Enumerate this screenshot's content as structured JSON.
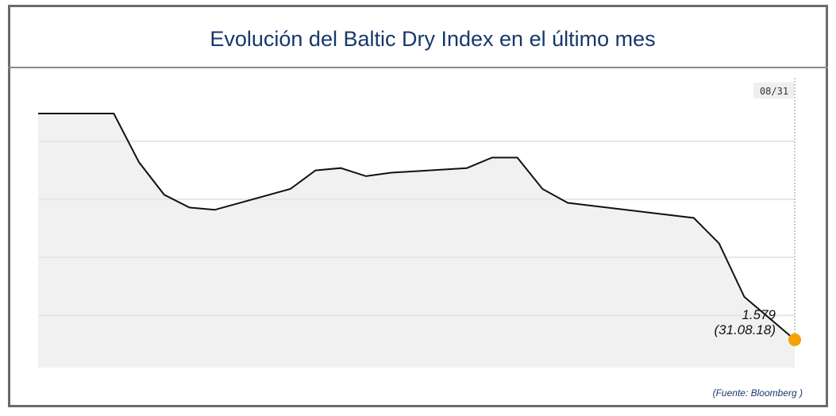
{
  "title": "Evolución del Baltic Dry Index en el último mes",
  "source": "(Fuente: Bloomberg )",
  "chart_data": {
    "type": "area",
    "title": "Evolución del Baltic Dry Index en el último mes",
    "xlabel": "",
    "ylabel": "",
    "grid": true,
    "x": [
      "2018-08-01",
      "2018-08-04",
      "2018-08-05",
      "2018-08-06",
      "2018-08-07",
      "2018-08-08",
      "2018-08-11",
      "2018-08-12",
      "2018-08-13",
      "2018-08-14",
      "2018-08-15",
      "2018-08-18",
      "2018-08-19",
      "2018-08-20",
      "2018-08-21",
      "2018-08-22",
      "2018-08-27",
      "2018-08-28",
      "2018-08-29",
      "2018-08-31"
    ],
    "values": [
      1774,
      1774,
      1732,
      1704,
      1693,
      1691,
      1709,
      1725,
      1727,
      1720,
      1723,
      1727,
      1736,
      1736,
      1709,
      1697,
      1684,
      1662,
      1616,
      1579
    ],
    "ylim": [
      1555,
      1800
    ],
    "gridlines": [
      1600,
      1650,
      1700,
      1750
    ],
    "crosshair_label": "08/31",
    "last_value_label": "1.579",
    "last_date_label": "(31.08.18)",
    "colors": {
      "line": "#111111",
      "fill": "#f1f1f1",
      "marker": "#f5a300",
      "title": "#17386b"
    }
  }
}
